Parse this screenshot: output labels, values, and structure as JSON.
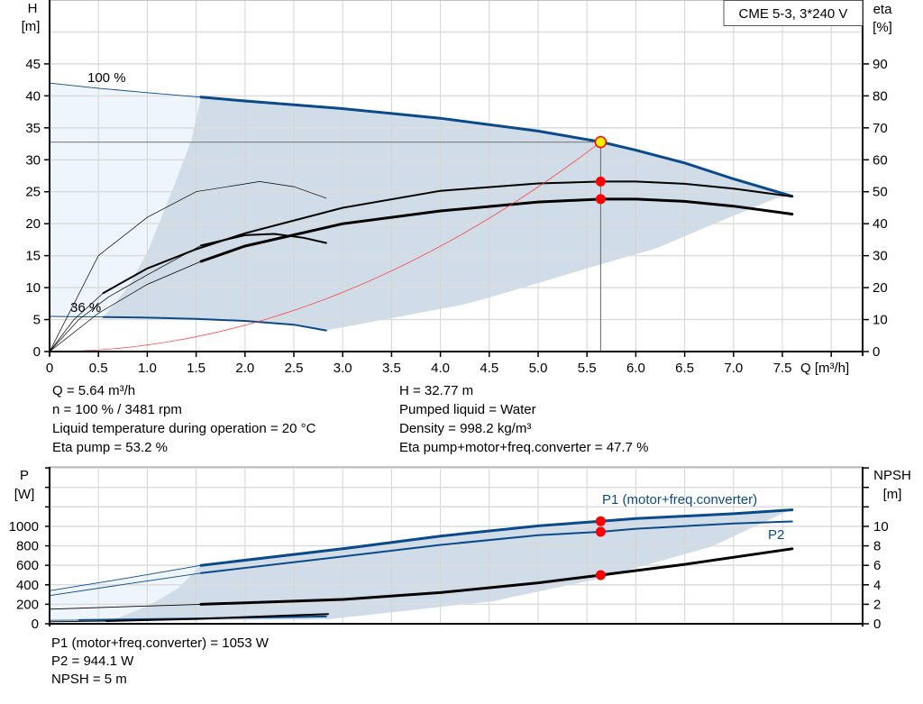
{
  "chart_data": [
    {
      "type": "line",
      "title": "CME 5-3, 3*240 V",
      "xlabel": "Q [m³/h]",
      "ylabel": [
        "H",
        "[m]"
      ],
      "y2label": [
        "eta",
        "[%]"
      ],
      "xlim": [
        0,
        8.3
      ],
      "ylim": [
        0,
        55
      ],
      "y2lim": [
        0,
        110
      ],
      "grid": true,
      "xticks": [
        "0",
        "0.5",
        "1.0",
        "1.5",
        "2.0",
        "2.5",
        "3.0",
        "3.5",
        "4.0",
        "4.5",
        "5.0",
        "5.5",
        "6.0",
        "6.5",
        "7.0",
        "7.5"
      ],
      "yticks": [
        0,
        5,
        10,
        15,
        20,
        25,
        30,
        35,
        40,
        45
      ],
      "y2ticks": [
        0,
        10,
        20,
        30,
        40,
        50,
        60,
        70,
        80,
        90
      ],
      "annotations": [
        "100 %",
        "36 %"
      ],
      "colors": {
        "head": "#0a4a8a",
        "eta": "#000000",
        "system": "#ff3333",
        "region": "#d0dce8",
        "region_light": "#eef5fc",
        "point": "#ff0000",
        "op_point": "#ffee00"
      },
      "regions": {
        "light": [
          [
            0,
            0
          ],
          [
            0,
            42
          ],
          [
            0.5,
            41.2
          ],
          [
            1.0,
            40.5
          ],
          [
            1.55,
            39.8
          ],
          [
            1.45,
            33
          ],
          [
            1.25,
            25
          ],
          [
            1.0,
            15.5
          ],
          [
            0.8,
            10
          ],
          [
            0.55,
            5.4
          ],
          [
            0,
            5.5
          ]
        ],
        "operating": [
          [
            1.55,
            39.8
          ],
          [
            2,
            39.2
          ],
          [
            3,
            38
          ],
          [
            4,
            36.5
          ],
          [
            5,
            34.5
          ],
          [
            5.64,
            32.8
          ],
          [
            6,
            31.5
          ],
          [
            6.5,
            29.5
          ],
          [
            7,
            27
          ],
          [
            7.6,
            24.3
          ],
          [
            7.44,
            24
          ],
          [
            6.8,
            20
          ],
          [
            6.22,
            16.2
          ],
          [
            5.5,
            13
          ],
          [
            4.51,
            8.5
          ],
          [
            4.22,
            7.3
          ],
          [
            2.83,
            3.3
          ],
          [
            2.5,
            4.2
          ],
          [
            2,
            4.8
          ],
          [
            1.5,
            5.1
          ],
          [
            1,
            5.3
          ],
          [
            0.55,
            5.4
          ],
          [
            0.8,
            10
          ],
          [
            1.0,
            15.5
          ],
          [
            1.25,
            25
          ],
          [
            1.45,
            33
          ]
        ]
      },
      "series": [
        {
          "axis": "H",
          "weight": "thin",
          "color": "#0a4a8a",
          "points": [
            [
              0,
              42
            ],
            [
              0.5,
              41.2
            ],
            [
              1.0,
              40.5
            ],
            [
              1.55,
              39.8
            ]
          ]
        },
        {
          "axis": "H",
          "weight": "thick",
          "color": "#0a4a8a",
          "points": [
            [
              1.55,
              39.8
            ],
            [
              2,
              39.2
            ],
            [
              3,
              38
            ],
            [
              4,
              36.5
            ],
            [
              5,
              34.5
            ],
            [
              5.64,
              32.8
            ],
            [
              6,
              31.5
            ],
            [
              6.5,
              29.5
            ],
            [
              7,
              27
            ],
            [
              7.6,
              24.3
            ]
          ]
        },
        {
          "axis": "H",
          "weight": "thin",
          "color": "#0a4a8a",
          "points": [
            [
              0,
              5.5
            ],
            [
              0.55,
              5.4
            ]
          ]
        },
        {
          "axis": "H",
          "weight": "medium",
          "color": "#0a4a8a",
          "points": [
            [
              0.55,
              5.4
            ],
            [
              1,
              5.3
            ],
            [
              1.5,
              5.1
            ],
            [
              2,
              4.8
            ],
            [
              2.5,
              4.2
            ],
            [
              2.83,
              3.3
            ]
          ]
        },
        {
          "axis": "eta",
          "weight": "hair",
          "color": "#000000",
          "points": [
            [
              0,
              0
            ],
            [
              0.5,
              30
            ],
            [
              1,
              42
            ],
            [
              1.5,
              50
            ],
            [
              2.15,
              53.2
            ],
            [
              2.5,
              51.6
            ],
            [
              2.83,
              48
            ]
          ]
        },
        {
          "axis": "eta",
          "weight": "hair",
          "color": "#000000",
          "points": [
            [
              0,
              0
            ],
            [
              0.3,
              10
            ],
            [
              0.6,
              17
            ],
            [
              1,
              24
            ],
            [
              1.55,
              33.2
            ]
          ]
        },
        {
          "axis": "eta",
          "weight": "medium",
          "color": "#000000",
          "points": [
            [
              1.55,
              33.2
            ],
            [
              2,
              36.4
            ],
            [
              2.3,
              36.8
            ],
            [
              2.6,
              35.6
            ],
            [
              2.83,
              34
            ]
          ]
        },
        {
          "axis": "eta",
          "weight": "hair",
          "color": "#000000",
          "points": [
            [
              0,
              0
            ],
            [
              0.25,
              10
            ],
            [
              0.55,
              18.3
            ]
          ]
        },
        {
          "axis": "eta",
          "weight": "hair",
          "color": "#000000",
          "points": [
            [
              0,
              0
            ],
            [
              0.5,
              12
            ],
            [
              1,
              21
            ],
            [
              1.55,
              28.2
            ]
          ]
        },
        {
          "axis": "eta",
          "weight": "medium",
          "color": "#000000",
          "points": [
            [
              0.55,
              18.3
            ],
            [
              1,
              26
            ],
            [
              1.5,
              32
            ],
            [
              2,
              37
            ],
            [
              3,
              45
            ],
            [
              4,
              50.3
            ],
            [
              5,
              52.6
            ],
            [
              5.64,
              53.2
            ],
            [
              6,
              53.2
            ],
            [
              6.5,
              52.5
            ],
            [
              7,
              51
            ],
            [
              7.6,
              48.5
            ]
          ]
        },
        {
          "axis": "eta",
          "weight": "thick",
          "color": "#000000",
          "points": [
            [
              1.55,
              28.2
            ],
            [
              2,
              33
            ],
            [
              3,
              40
            ],
            [
              4,
              44
            ],
            [
              5,
              46.8
            ],
            [
              5.64,
              47.7
            ],
            [
              6,
              47.7
            ],
            [
              6.5,
              47
            ],
            [
              7,
              45.5
            ],
            [
              7.6,
              43
            ]
          ]
        },
        {
          "axis": "H",
          "weight": "hair",
          "color": "#ff3333",
          "system": true,
          "points": []
        }
      ],
      "operating_point": {
        "Q": 5.64,
        "H": 32.77,
        "eta_pump": 53.2,
        "eta_total": 47.7
      }
    },
    {
      "type": "line",
      "ylabel": [
        "P",
        "[W]"
      ],
      "y2label": [
        "NPSH",
        "[m]"
      ],
      "xlim": [
        0,
        8.3
      ],
      "ylim": [
        0,
        1610
      ],
      "y2lim": [
        0,
        16.1
      ],
      "grid": true,
      "yticks": [
        0,
        200,
        400,
        600,
        800,
        1000
      ],
      "y2ticks": [
        0,
        2,
        4,
        6,
        8,
        10
      ],
      "series_labels": [
        "P1 (motor+freq.converter)",
        "P2"
      ],
      "regions": {
        "light": [
          [
            0,
            0
          ],
          [
            0,
            340
          ],
          [
            0.5,
            420
          ],
          [
            1.0,
            505
          ],
          [
            1.55,
            600
          ],
          [
            1.31,
            360
          ],
          [
            1.0,
            180
          ],
          [
            0.7,
            60
          ],
          [
            0.3,
            30
          ],
          [
            0,
            20
          ]
        ],
        "operating": [
          [
            1.55,
            600
          ],
          [
            3,
            770
          ],
          [
            4,
            900
          ],
          [
            5,
            1005
          ],
          [
            5.64,
            1053
          ],
          [
            6,
            1080
          ],
          [
            7,
            1130
          ],
          [
            7.6,
            1170
          ],
          [
            7.56,
            1160
          ],
          [
            6.77,
            790
          ],
          [
            5.56,
            450
          ],
          [
            4.53,
            230
          ],
          [
            2.85,
            46
          ],
          [
            0.3,
            30
          ],
          [
            0.7,
            60
          ],
          [
            1.0,
            180
          ],
          [
            1.31,
            360
          ]
        ]
      },
      "series": [
        {
          "axis": "P",
          "weight": "thin",
          "color": "#0a4a8a",
          "points": [
            [
              0,
              340
            ],
            [
              0.8,
              470
            ],
            [
              1.55,
              600
            ]
          ]
        },
        {
          "axis": "P",
          "weight": "thick",
          "color": "#0a4a8a",
          "name": "P1 (motor+freq.converter)",
          "points": [
            [
              1.55,
              600
            ],
            [
              3,
              770
            ],
            [
              4,
              900
            ],
            [
              5,
              1005
            ],
            [
              5.64,
              1053
            ],
            [
              6,
              1080
            ],
            [
              7,
              1130
            ],
            [
              7.6,
              1170
            ]
          ]
        },
        {
          "axis": "P",
          "weight": "thin",
          "color": "#0a4a8a",
          "points": [
            [
              0,
              290
            ],
            [
              0.8,
              410
            ],
            [
              1.55,
              520
            ]
          ]
        },
        {
          "axis": "P",
          "weight": "medium",
          "color": "#0a4a8a",
          "name": "P2",
          "points": [
            [
              1.55,
              520
            ],
            [
              3,
              690
            ],
            [
              4,
              810
            ],
            [
              5,
              910
            ],
            [
              5.64,
              944
            ],
            [
              6,
              975
            ],
            [
              7,
              1030
            ],
            [
              7.6,
              1050
            ]
          ]
        },
        {
          "axis": "NPSH",
          "weight": "thin",
          "color": "#000000",
          "points": [
            [
              0,
              1.5
            ],
            [
              1.55,
              2.0
            ]
          ]
        },
        {
          "axis": "NPSH",
          "weight": "thick",
          "color": "#000000",
          "points": [
            [
              1.55,
              2.0
            ],
            [
              3,
              2.5
            ],
            [
              4,
              3.2
            ],
            [
              5,
              4.2
            ],
            [
              5.64,
              5
            ],
            [
              6.5,
              6.1
            ],
            [
              7.6,
              7.7
            ]
          ]
        },
        {
          "axis": "P",
          "weight": "thin",
          "color": "#0a4a8a",
          "points": [
            [
              0,
              35
            ],
            [
              0.3,
              38
            ]
          ]
        },
        {
          "axis": "P",
          "weight": "medium",
          "color": "#0a4a8a",
          "points": [
            [
              0.3,
              38
            ],
            [
              1.5,
              55
            ],
            [
              2.83,
              75
            ]
          ]
        },
        {
          "axis": "P",
          "weight": "thin",
          "color": "#000000",
          "points": [
            [
              0,
              20
            ],
            [
              0.58,
              28
            ]
          ]
        },
        {
          "axis": "P",
          "weight": "medium",
          "color": "#000000",
          "points": [
            [
              0.58,
              28
            ],
            [
              1.5,
              50
            ],
            [
              2.85,
              100
            ]
          ]
        }
      ],
      "operating_point": {
        "Q": 5.64,
        "P1": 1053,
        "P2": 944.1,
        "NPSH": 5
      }
    }
  ],
  "info_top": {
    "left": [
      "Q = 5.64 m³/h",
      "n = 100 % / 3481 rpm",
      "Liquid temperature during operation = 20 °C",
      "Eta pump = 53.2 %"
    ],
    "right": [
      "H = 32.77 m",
      "Pumped liquid = Water",
      "Density = 998.2 kg/m³",
      "Eta pump+motor+freq.converter = 47.7 %"
    ]
  },
  "info_bottom": [
    "P1 (motor+freq.converter) = 1053 W",
    "P2 = 944.1 W",
    "NPSH = 5 m"
  ]
}
